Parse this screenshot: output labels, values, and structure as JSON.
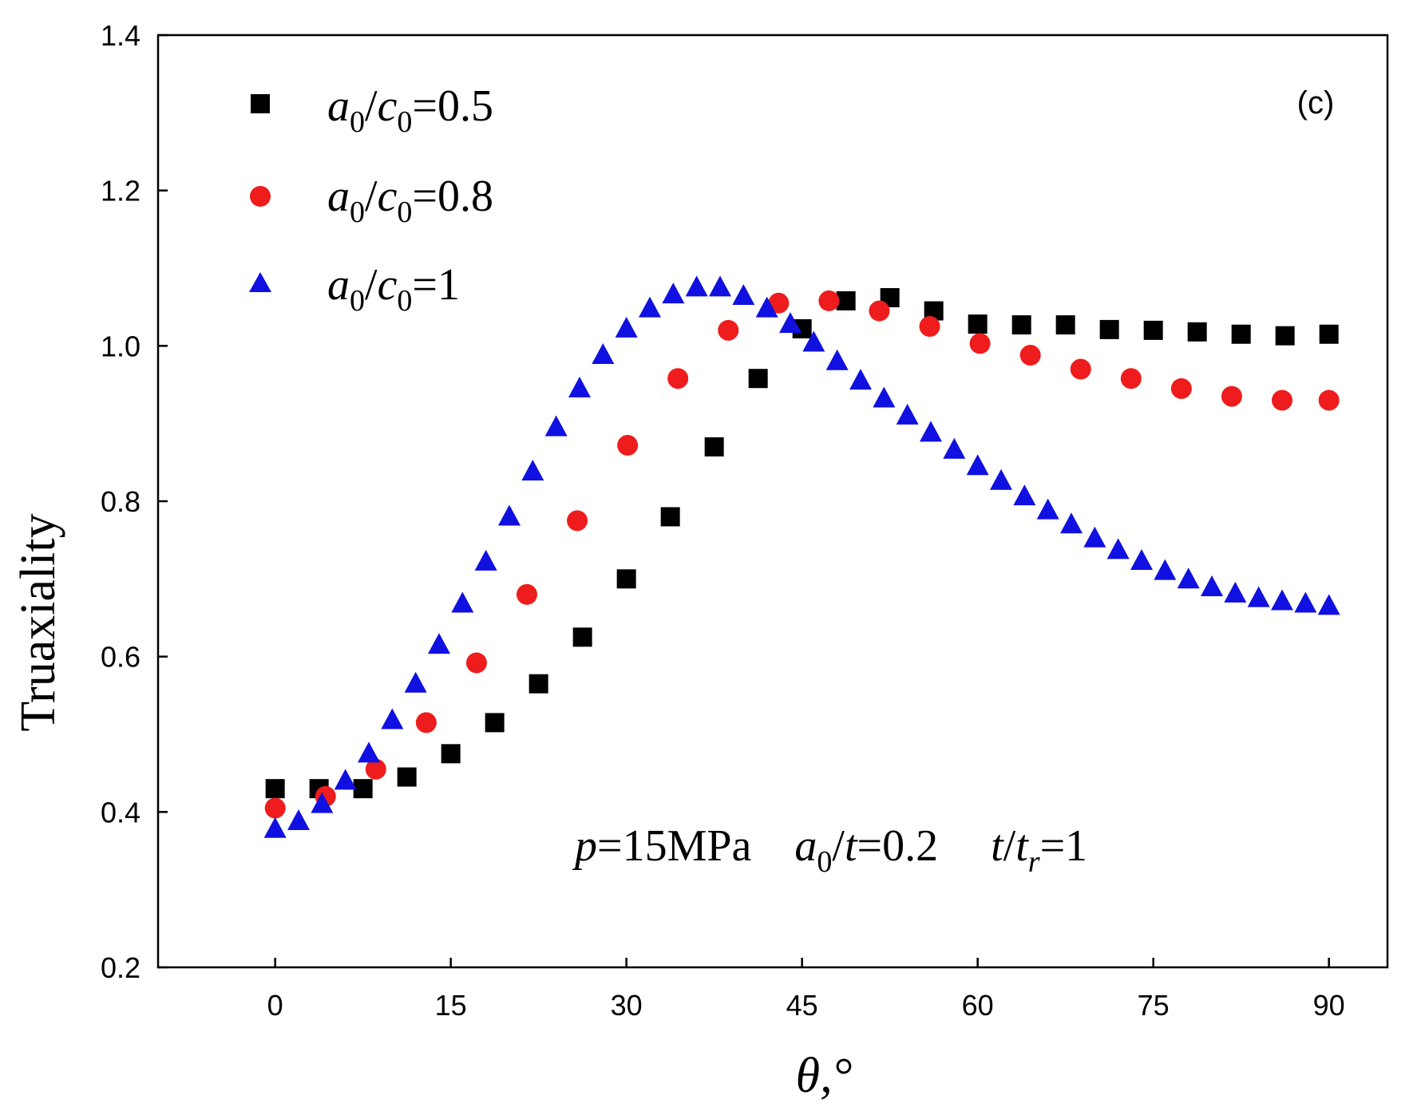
{
  "chart_data": {
    "type": "scatter",
    "title": "",
    "panel_label": "(c)",
    "xlabel": "θ,°",
    "ylabel": "Truaxiality",
    "xlim": [
      -10,
      95
    ],
    "ylim": [
      0.2,
      1.4
    ],
    "xticks": [
      0,
      15,
      30,
      45,
      60,
      75,
      90
    ],
    "xtick_labels": [
      "0",
      "15",
      "30",
      "45",
      "60",
      "75",
      "90"
    ],
    "yticks": [
      0.2,
      0.4,
      0.6,
      0.8,
      1.0,
      1.2,
      1.4
    ],
    "ytick_labels": [
      "0.2",
      "0.4",
      "0.6",
      "0.8",
      "1.0",
      "1.2",
      "1.4"
    ],
    "grid": false,
    "legend_position": "top-left",
    "series": [
      {
        "name": "a0/c0=0.5",
        "legend_parts": {
          "a": "a",
          "a_sub": "0",
          "slash": "/",
          "c": "c",
          "c_sub": "0",
          "rest": "=0.5"
        },
        "marker": "square",
        "color": "#000000",
        "x": [
          0,
          3.75,
          7.5,
          11.25,
          15,
          18.75,
          22.5,
          26.25,
          30,
          33.75,
          37.5,
          41.25,
          45,
          48.75,
          52.5,
          56.25,
          60,
          63.75,
          67.5,
          71.25,
          75,
          78.75,
          82.5,
          86.25,
          90
        ],
        "y": [
          0.43,
          0.43,
          0.43,
          0.445,
          0.475,
          0.515,
          0.565,
          0.625,
          0.7,
          0.78,
          0.87,
          0.958,
          1.022,
          1.058,
          1.062,
          1.045,
          1.028,
          1.027,
          1.027,
          1.021,
          1.02,
          1.018,
          1.015,
          1.013,
          1.015
        ]
      },
      {
        "name": "a0/c0=0.8",
        "legend_parts": {
          "a": "a",
          "a_sub": "0",
          "slash": "/",
          "c": "c",
          "c_sub": "0",
          "rest": "=0.8"
        },
        "marker": "circle",
        "color": "#ee1c1c",
        "x": [
          0,
          4.3,
          8.6,
          12.9,
          17.2,
          21.5,
          25.8,
          30.1,
          34.4,
          38.7,
          43,
          47.3,
          51.6,
          55.9,
          60.2,
          64.5,
          68.8,
          73.1,
          77.4,
          81.7,
          86,
          90
        ],
        "y": [
          0.405,
          0.42,
          0.455,
          0.515,
          0.592,
          0.68,
          0.775,
          0.872,
          0.958,
          1.02,
          1.055,
          1.058,
          1.045,
          1.025,
          1.003,
          0.988,
          0.97,
          0.958,
          0.945,
          0.935,
          0.93,
          0.93
        ]
      },
      {
        "name": "a0/c0=1",
        "legend_parts": {
          "a": "a",
          "a_sub": "0",
          "slash": "/",
          "c": "c",
          "c_sub": "0",
          "rest": "=1"
        },
        "marker": "triangle",
        "color": "#1010e0",
        "x": [
          0,
          2,
          4,
          6,
          8,
          10,
          12,
          14,
          16,
          18,
          20,
          22,
          24,
          26,
          28,
          30,
          32,
          34,
          36,
          38,
          40,
          42,
          44,
          46,
          48,
          50,
          52,
          54,
          56,
          58,
          60,
          62,
          64,
          66,
          68,
          70,
          72,
          74,
          76,
          78,
          80,
          82,
          84,
          86,
          88,
          90
        ],
        "y": [
          0.378,
          0.388,
          0.41,
          0.44,
          0.475,
          0.518,
          0.565,
          0.615,
          0.668,
          0.722,
          0.78,
          0.838,
          0.895,
          0.945,
          0.988,
          1.022,
          1.048,
          1.066,
          1.075,
          1.075,
          1.064,
          1.048,
          1.028,
          1.004,
          0.98,
          0.955,
          0.932,
          0.91,
          0.888,
          0.866,
          0.845,
          0.826,
          0.806,
          0.788,
          0.77,
          0.752,
          0.737,
          0.723,
          0.71,
          0.699,
          0.689,
          0.681,
          0.675,
          0.671,
          0.668,
          0.665
        ]
      }
    ],
    "annotation": {
      "p_var": "p",
      "p_text": "=15MPa",
      "a_var": "a",
      "a_sub": "0",
      "a_slash": "/",
      "t_var": "t",
      "a_text": "=0.2",
      "t2_var": "t",
      "t2_slash": "/",
      "t3_var": "t",
      "t3_sub": "r",
      "t_text": "=1"
    }
  }
}
